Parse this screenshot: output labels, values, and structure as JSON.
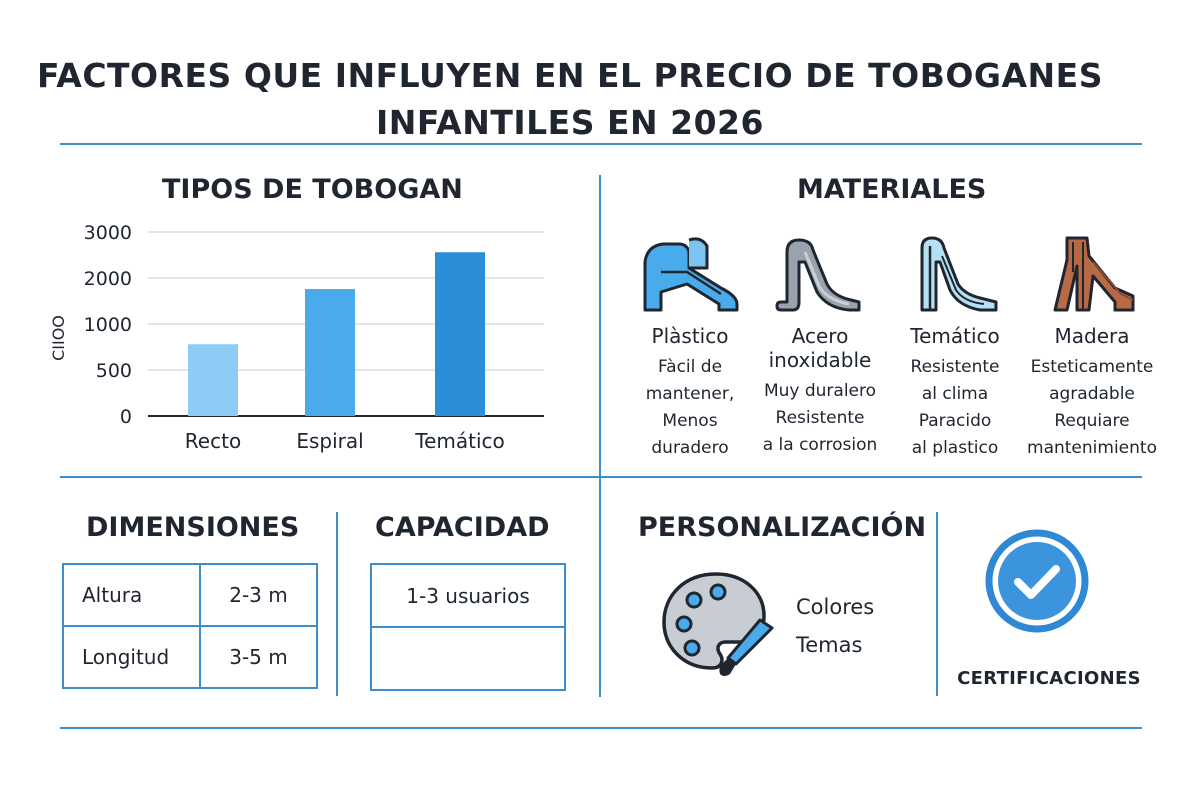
{
  "title_line1": "FACTORES QUE INFLUYEN EN EL PRECIO DE TOBOGANES",
  "title_line2": "INFANTILES EN 2026",
  "sections": {
    "types": "TIPOS DE TOBOGAN",
    "materials": "MATERIALES",
    "dimensions": "DIMENSIONES",
    "capacity": "CAPACIDAD",
    "personalization": "PERSONALIZACIÓN",
    "certifications": "CERTIFICACIONES"
  },
  "chart_data": {
    "type": "bar",
    "categories": [
      "Recto",
      "Espiral",
      "Temático"
    ],
    "values": [
      780,
      1760,
      2560
    ],
    "ylabel": "CIIOO",
    "yticks": [
      0,
      500,
      1000,
      2000,
      3000
    ],
    "ylim": [
      0,
      3000
    ],
    "grid": true,
    "colors": [
      "#8ecbf5",
      "#4aabec",
      "#2a8fd8"
    ]
  },
  "materials": [
    {
      "name": "Plàstico",
      "desc": [
        "Fàcil de",
        "mantener,",
        "Menos",
        "duradero"
      ],
      "icon": "plastic-slide-icon",
      "color": "#4aabec"
    },
    {
      "name": "Acero\ninoxidable",
      "desc": [
        "Muy duralero",
        "Resistente",
        "a la corrosion"
      ],
      "icon": "steel-slide-icon",
      "color": "#9aa3ad"
    },
    {
      "name": "Temático",
      "desc": [
        "Resistente",
        "al clima",
        "Paracido",
        "al plastico"
      ],
      "icon": "themed-slide-icon",
      "color": "#b5e0f2"
    },
    {
      "name": "Madera",
      "desc": [
        "Esteticamente",
        "agradable",
        "Requiare",
        "mantenimiento"
      ],
      "icon": "wood-slide-icon",
      "color": "#b86a47"
    }
  ],
  "dimensions": [
    {
      "label": "Altura",
      "value": "2-3 m"
    },
    {
      "label": "Longitud",
      "value": "3-5 m"
    }
  ],
  "capacity": {
    "value": "1-3 usuarios",
    "empty": ""
  },
  "personalization": [
    "Colores",
    "Temas"
  ],
  "accent_color": "#3f8dc9"
}
